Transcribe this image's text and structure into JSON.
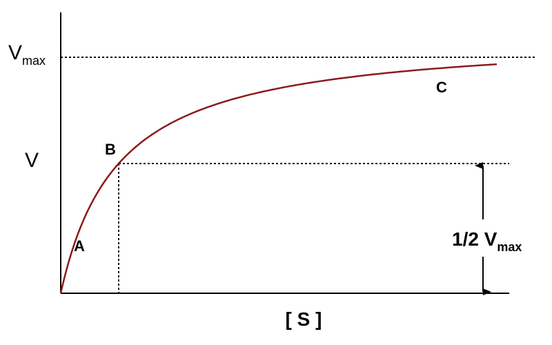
{
  "axes": {
    "y_label": "V",
    "x_label": "[ S ]"
  },
  "vmax_label": {
    "text": "V",
    "subscript": "max"
  },
  "half_vmax_label": {
    "text": "1/2 V",
    "subscript": "max"
  },
  "points": [
    "A",
    "B",
    "C"
  ]
}
